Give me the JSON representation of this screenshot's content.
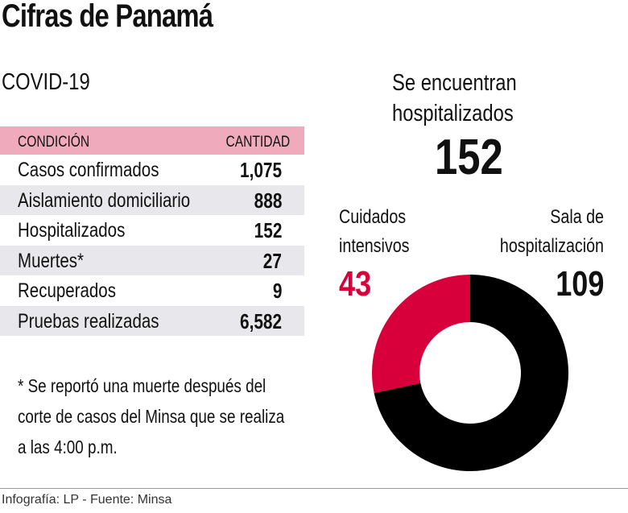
{
  "title": "Cifras de Panamá",
  "subtitle": "COVID-19",
  "table": {
    "headers": [
      "CONDICIÓN",
      "CANTIDAD"
    ],
    "rows": [
      {
        "label": "Casos confirmados",
        "value": "1,075"
      },
      {
        "label": "Aislamiento domiciliario",
        "value": "888"
      },
      {
        "label": "Hospitalizados",
        "value": "152"
      },
      {
        "label": "Muertes*",
        "value": "27"
      },
      {
        "label": "Recuperados",
        "value": "9"
      },
      {
        "label": "Pruebas realizadas",
        "value": "6,582"
      }
    ],
    "header_color": "#efaabb"
  },
  "note": "* Se reportó  una muerte después del corte de casos del Minsa que se realiza a las 4:00 p.m.",
  "hospitalized": {
    "label": "Se encuentran hospitalizados",
    "value": "152"
  },
  "chart_data": {
    "type": "pie",
    "donut": true,
    "total": 152,
    "slices": [
      {
        "name": "Cuidados intensivos",
        "value": 43,
        "label": "43",
        "color": "#d8003b"
      },
      {
        "name": "Sala de hospitalización",
        "value": 109,
        "label": "109",
        "color": "#000000"
      }
    ]
  },
  "footer": "Infografía: LP - Fuente: Minsa"
}
